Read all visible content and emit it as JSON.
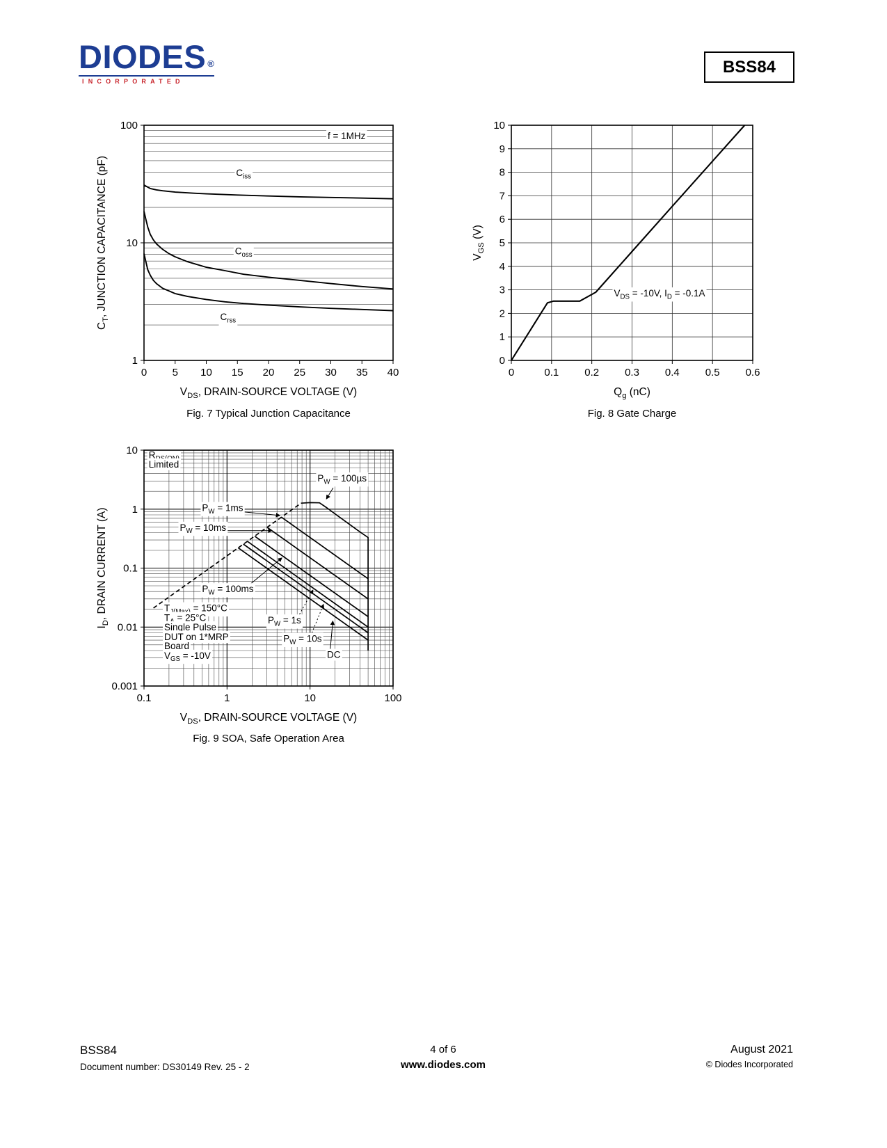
{
  "header": {
    "logo_text": "DIODES",
    "logo_sub": "INCORPORATED",
    "part_number": "BSS84"
  },
  "chart_data": [
    {
      "type": "line",
      "title": "Fig. 7 Typical Junction Capacitance",
      "xlabel": "V~DS~, DRAIN-SOURCE VOLTAGE (V)",
      "ylabel": "C~T~, JUNCTION CAPACITANCE (pF)",
      "x": {
        "type": "linear",
        "min": 0,
        "max": 40,
        "ticks": [
          0,
          5,
          10,
          15,
          20,
          25,
          30,
          35,
          40
        ]
      },
      "y": {
        "type": "log",
        "min": 1,
        "max": 100,
        "ticks": [
          1,
          10,
          100
        ]
      },
      "grid": {
        "x": false,
        "y": "log-minor"
      },
      "series": [
        {
          "name": "C~iss~",
          "points": [
            [
              0,
              31
            ],
            [
              1,
              29
            ],
            [
              2,
              28.2
            ],
            [
              3,
              27.7
            ],
            [
              5,
              27
            ],
            [
              8,
              26.4
            ],
            [
              10,
              26.1
            ],
            [
              15,
              25.5
            ],
            [
              20,
              25
            ],
            [
              25,
              24.6
            ],
            [
              30,
              24.3
            ],
            [
              35,
              24
            ],
            [
              40,
              23.7
            ]
          ]
        },
        {
          "name": "C~oss~",
          "points": [
            [
              0,
              18.5
            ],
            [
              0.3,
              15.8
            ],
            [
              0.6,
              13.6
            ],
            [
              1,
              11.8
            ],
            [
              1.5,
              10.6
            ],
            [
              2,
              9.8
            ],
            [
              3,
              8.8
            ],
            [
              4,
              8.1
            ],
            [
              5,
              7.6
            ],
            [
              7,
              6.9
            ],
            [
              10,
              6.2
            ],
            [
              13,
              5.8
            ],
            [
              16,
              5.4
            ],
            [
              20,
              5.1
            ],
            [
              25,
              4.8
            ],
            [
              30,
              4.5
            ],
            [
              35,
              4.25
            ],
            [
              40,
              4.05
            ]
          ]
        },
        {
          "name": "C~rss~",
          "points": [
            [
              0,
              8.1
            ],
            [
              0.3,
              6.9
            ],
            [
              0.6,
              5.9
            ],
            [
              1,
              5.3
            ],
            [
              1.5,
              4.8
            ],
            [
              2,
              4.5
            ],
            [
              3,
              4.1
            ],
            [
              4,
              3.9
            ],
            [
              5,
              3.7
            ],
            [
              7,
              3.5
            ],
            [
              10,
              3.3
            ],
            [
              13,
              3.15
            ],
            [
              16,
              3.05
            ],
            [
              20,
              2.95
            ],
            [
              25,
              2.85
            ],
            [
              30,
              2.77
            ],
            [
              35,
              2.71
            ],
            [
              40,
              2.65
            ]
          ]
        }
      ],
      "annotations": [
        {
          "text": "f = 1MHz",
          "x": 29.5,
          "y": 76
        },
        {
          "text": "C~iss~",
          "x": 16,
          "y": 37,
          "anchor": "middle"
        },
        {
          "text": "C~oss~",
          "x": 16,
          "y": 8,
          "anchor": "middle"
        },
        {
          "text": "C~rss~",
          "x": 13.5,
          "y": 2.2,
          "anchor": "middle"
        }
      ]
    },
    {
      "type": "line",
      "title": "Fig. 8 Gate Charge",
      "xlabel": "Q~g~ (nC)",
      "ylabel": "V~GS~ (V)",
      "x": {
        "type": "linear",
        "min": 0,
        "max": 0.6,
        "ticks": [
          0,
          0.1,
          0.2,
          0.3,
          0.4,
          0.5,
          0.6
        ]
      },
      "y": {
        "type": "linear",
        "min": 0,
        "max": 10,
        "ticks": [
          0,
          1,
          2,
          3,
          4,
          5,
          6,
          7,
          8,
          9,
          10
        ]
      },
      "grid": {
        "x": true,
        "y": true
      },
      "series": [
        {
          "name": "V~GS~",
          "points": [
            [
              0,
              0
            ],
            [
              0.09,
              2.45
            ],
            [
              0.105,
              2.52
            ],
            [
              0.17,
              2.52
            ],
            [
              0.21,
              2.9
            ],
            [
              0.3,
              4.63
            ],
            [
              0.4,
              6.55
            ],
            [
              0.5,
              8.47
            ],
            [
              0.58,
              10
            ]
          ]
        }
      ],
      "annotations": [
        {
          "text": "V~DS~ = -10V, I~D~ = -0.1A",
          "x": 0.255,
          "y": 2.72
        }
      ]
    },
    {
      "type": "line",
      "title": "Fig. 9 SOA, Safe Operation Area",
      "xlabel": "V~DS~, DRAIN-SOURCE VOLTAGE (V)",
      "ylabel": "I~D~, DRAIN CURRENT (A)",
      "x": {
        "type": "log",
        "min": 0.1,
        "max": 100,
        "ticks": [
          0.1,
          1,
          10,
          100
        ]
      },
      "y": {
        "type": "log",
        "min": 0.001,
        "max": 10,
        "ticks": [
          0.001,
          0.01,
          0.1,
          1,
          10
        ]
      },
      "grid": {
        "x": "log-minor",
        "y": "log-minor"
      },
      "series": [
        {
          "name": "R~DS(ON)~ Limited",
          "dashed": true,
          "points": [
            [
              0.13,
              0.021
            ],
            [
              7.8,
              1.26
            ]
          ]
        },
        {
          "name": "P~W~ = 100µs",
          "points": [
            [
              7.8,
              1.26
            ],
            [
              10,
              1.29
            ],
            [
              13,
              1.28
            ],
            [
              16,
              1.05
            ],
            [
              20,
              0.83
            ],
            [
              30,
              0.55
            ],
            [
              40,
              0.41
            ],
            [
              50,
              0.33
            ],
            [
              50,
              0.004
            ]
          ]
        },
        {
          "name": "P~W~ = 1ms",
          "points": [
            [
              4.52,
              0.73
            ],
            [
              50,
              0.066
            ]
          ]
        },
        {
          "name": "P~W~ = 10ms",
          "points": [
            [
              3.05,
              0.49
            ],
            [
              50,
              0.03
            ]
          ]
        },
        {
          "name": "P~W~ = 100ms",
          "points": [
            [
              2.16,
              0.347
            ],
            [
              50,
              0.015
            ]
          ]
        },
        {
          "name": "P~W~ = 1s",
          "points": [
            [
              1.76,
              0.284
            ],
            [
              50,
              0.01
            ]
          ]
        },
        {
          "name": "P~W~ = 10s",
          "points": [
            [
              1.57,
              0.255
            ],
            [
              50,
              0.008
            ]
          ]
        },
        {
          "name": "DC",
          "points": [
            [
              1.36,
              0.221
            ],
            [
              50,
              0.006
            ]
          ]
        }
      ],
      "annotations": [
        {
          "text": "R~DS(ON)~",
          "x": 0.114,
          "y": 7.3
        },
        {
          "text": "Limited",
          "x": 0.114,
          "y": 5.1
        },
        {
          "text": "P~W~ = 100µs",
          "x": 12.3,
          "y": 2.95,
          "leader": [
            19,
            2.3,
            15.8,
            1.5
          ],
          "arrow": true
        },
        {
          "text": "P~W~ = 1ms",
          "x": 0.5,
          "y": 0.93,
          "leader": [
            1.55,
            0.9,
            4.3,
            0.78
          ],
          "arrow": true
        },
        {
          "text": "P~W~ = 10ms",
          "x": 0.27,
          "y": 0.43,
          "leader": [
            0.95,
            0.43,
            3.45,
            0.43
          ],
          "arrow": true
        },
        {
          "text": "P~W~ = 100ms",
          "x": 0.5,
          "y": 0.039,
          "leader": [
            1.8,
            0.05,
            4.55,
            0.148
          ],
          "arrow": true
        },
        {
          "text": "P~W~ = 1s",
          "x": 3.1,
          "y": 0.0115,
          "leader": [
            6.8,
            0.013,
            10.8,
            0.042
          ],
          "arrow": true,
          "dotted": true
        },
        {
          "text": "P~W~ = 10s",
          "x": 4.76,
          "y": 0.0056,
          "leader": [
            9.8,
            0.0062,
            14.5,
            0.024
          ],
          "arrow": true,
          "dotted": true
        },
        {
          "text": "DC",
          "x": 16,
          "y": 0.003,
          "leader": [
            17.5,
            0.0042,
            18.8,
            0.0125
          ],
          "arrow": true
        },
        {
          "text": "T~J(Max)~ = 150°C",
          "x": 0.175,
          "y": 0.0185
        },
        {
          "text": "T~A~ = 25°C",
          "x": 0.175,
          "y": 0.0127
        },
        {
          "text": "Single Pulse",
          "x": 0.175,
          "y": 0.0088
        },
        {
          "text": "DUT on 1*MRP",
          "x": 0.175,
          "y": 0.006
        },
        {
          "text": "Board",
          "x": 0.175,
          "y": 0.0042
        },
        {
          "text": "V~GS~ = -10V",
          "x": 0.175,
          "y": 0.0029
        }
      ]
    }
  ],
  "footer": {
    "part": "BSS84",
    "document_number": "Document number: DS30149 Rev. 25 - 2",
    "page": "4 of 6",
    "website": "www.diodes.com",
    "date": "August 2021",
    "copyright": "© Diodes Incorporated"
  }
}
